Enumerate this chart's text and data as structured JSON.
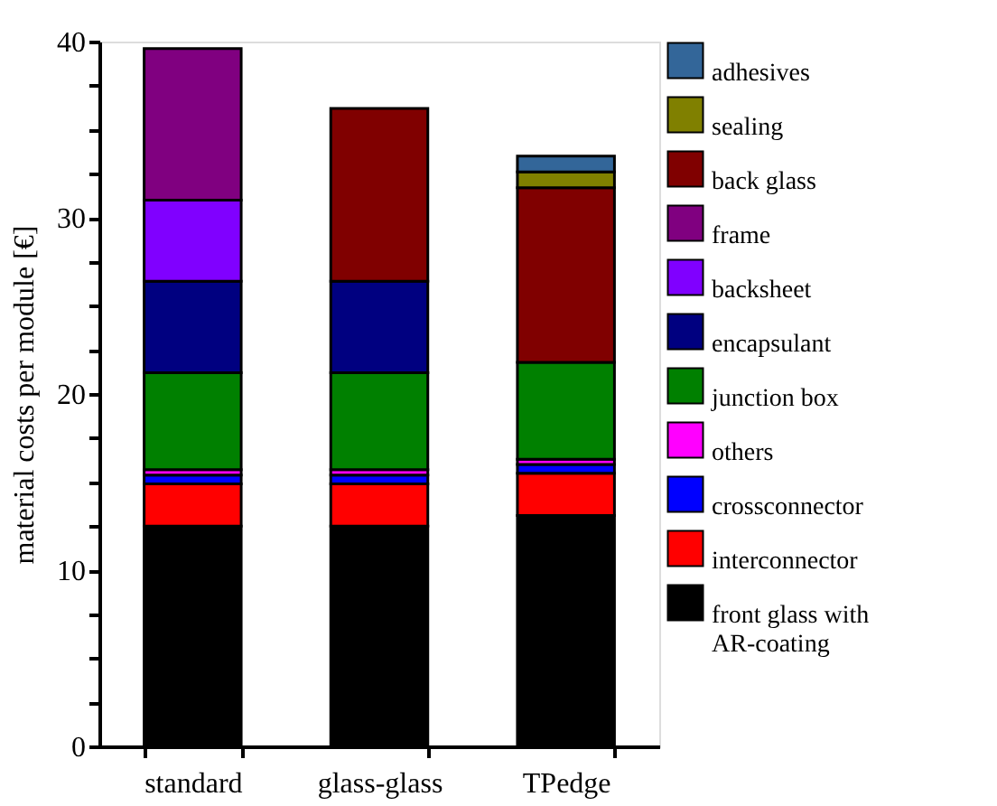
{
  "chart_data": {
    "type": "bar",
    "stacked": true,
    "ylabel": "material costs per module [€]",
    "categories": [
      "standard",
      "glass-glass",
      "TPedge"
    ],
    "ylim": [
      0,
      40
    ],
    "yticks": [
      0,
      {
        "value": 2.5,
        "label": null
      },
      {
        "value": 5,
        "label": null
      },
      {
        "value": 7.5,
        "label": null
      },
      10,
      {
        "value": 12.5,
        "label": null
      },
      {
        "value": 15,
        "label": null
      },
      {
        "value": 17.5,
        "label": null
      },
      20,
      {
        "value": 22.5,
        "label": null
      },
      {
        "value": 25,
        "label": null
      },
      {
        "value": 27.5,
        "label": null
      },
      30,
      {
        "value": 32.5,
        "label": null
      },
      {
        "value": 35,
        "label": null
      },
      {
        "value": 37.5,
        "label": null
      },
      40
    ],
    "legend": "right",
    "grid": false,
    "series": [
      {
        "name": "front glass with AR-coating",
        "color": "#000000",
        "values": [
          12.5,
          12.5,
          13.1
        ]
      },
      {
        "name": "interconnector",
        "color": "#ff0000",
        "values": [
          2.4,
          2.4,
          2.4
        ]
      },
      {
        "name": "crossconnector",
        "color": "#0000ff",
        "values": [
          0.5,
          0.5,
          0.5
        ]
      },
      {
        "name": "others",
        "color": "#ff00ff",
        "values": [
          0.3,
          0.3,
          0.3
        ]
      },
      {
        "name": "junction box",
        "color": "#008000",
        "values": [
          5.5,
          5.5,
          5.5
        ]
      },
      {
        "name": "encapsulant",
        "color": "#000080",
        "values": [
          5.2,
          5.2,
          null
        ]
      },
      {
        "name": "backsheet",
        "color": "#8000ff",
        "values": [
          4.6,
          null,
          null
        ]
      },
      {
        "name": "frame",
        "color": "#800080",
        "values": [
          8.6,
          null,
          null
        ]
      },
      {
        "name": "back glass",
        "color": "#800000",
        "values": [
          null,
          9.8,
          9.9
        ]
      },
      {
        "name": "sealing",
        "color": "#808000",
        "values": [
          null,
          null,
          0.9
        ]
      },
      {
        "name": "adhesives",
        "color": "#336699",
        "values": [
          null,
          null,
          0.9
        ]
      }
    ]
  }
}
